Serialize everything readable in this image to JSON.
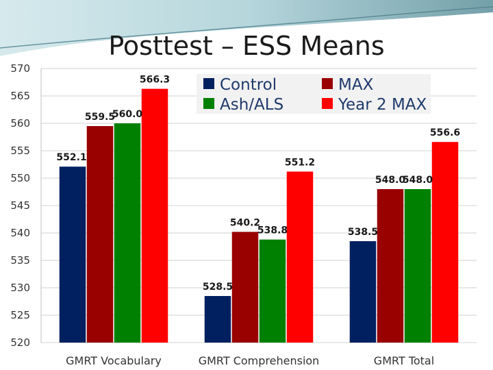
{
  "chart_data": {
    "type": "bar",
    "title": "Posttest – ESS Means",
    "xlabel": "",
    "ylabel": "",
    "categories": [
      "GMRT Vocabulary",
      "GMRT Comprehension",
      "GMRT Total"
    ],
    "ylim": [
      520,
      570
    ],
    "yticks": [
      520,
      525,
      530,
      535,
      540,
      545,
      550,
      555,
      560,
      565,
      570
    ],
    "grid": true,
    "legend_position": "top-right",
    "series": [
      {
        "name": "Control",
        "color": "#002060",
        "values": [
          552.1,
          528.5,
          538.5
        ]
      },
      {
        "name": "MAX",
        "color": "#990000",
        "values": [
          559.5,
          540.2,
          548.0
        ]
      },
      {
        "name": "Ash/ALS",
        "color": "#008000",
        "values": [
          560.0,
          538.8,
          548.0
        ]
      },
      {
        "name": "Year 2 MAX",
        "color": "#ff0000",
        "values": [
          566.3,
          551.2,
          556.6
        ]
      }
    ],
    "data_labels": [
      [
        "552.1",
        "528.5",
        "538.5"
      ],
      [
        "559.5",
        "540.2",
        "548.0"
      ],
      [
        "560.0",
        "538.8",
        "548.0"
      ],
      [
        "566.3",
        "551.2",
        "556.6"
      ]
    ]
  }
}
